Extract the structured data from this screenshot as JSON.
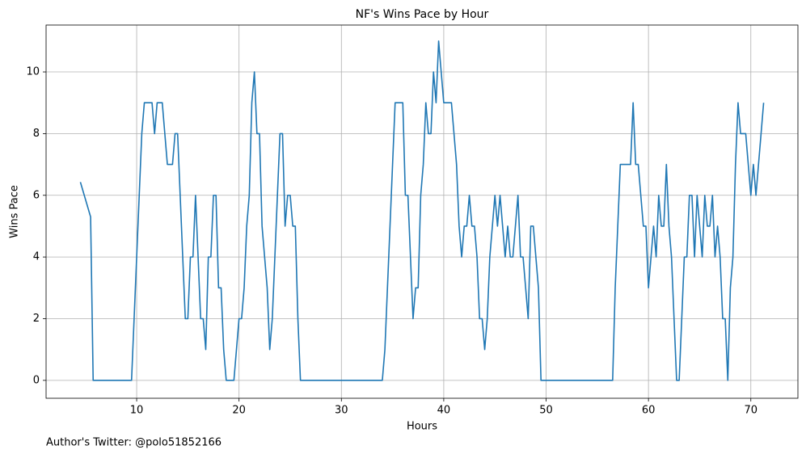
{
  "chart_data": {
    "type": "line",
    "title": "NF's Wins Pace by Hour",
    "xlabel": "Hours",
    "ylabel": "Wins Pace",
    "annotation": "Author's Twitter: @polo51852166",
    "x": [
      4.5,
      5.5,
      5.75,
      9.5,
      10.0,
      10.5,
      10.75,
      11.5,
      11.75,
      12.0,
      12.5,
      12.75,
      13.0,
      13.5,
      13.75,
      14.0,
      14.25,
      14.5,
      14.75,
      15.0,
      15.25,
      15.5,
      15.75,
      16.0,
      16.25,
      16.5,
      16.75,
      17.0,
      17.25,
      17.5,
      17.75,
      18.0,
      18.25,
      18.5,
      18.75,
      19.5,
      20.0,
      20.25,
      20.5,
      20.75,
      21.0,
      21.25,
      21.5,
      21.75,
      22.0,
      22.25,
      22.5,
      22.75,
      23.0,
      23.25,
      23.5,
      23.75,
      24.0,
      24.25,
      24.5,
      24.75,
      25.0,
      25.25,
      25.5,
      25.75,
      26.0,
      34.0,
      34.25,
      34.5,
      34.75,
      35.0,
      35.25,
      36.0,
      36.25,
      36.5,
      36.75,
      37.0,
      37.25,
      37.5,
      37.75,
      38.0,
      38.25,
      38.5,
      38.75,
      39.0,
      39.25,
      39.5,
      39.75,
      40.0,
      40.75,
      41.0,
      41.25,
      41.5,
      41.75,
      42.0,
      42.25,
      42.5,
      42.75,
      43.0,
      43.25,
      43.5,
      43.75,
      44.0,
      44.25,
      44.5,
      44.75,
      45.0,
      45.25,
      45.5,
      45.75,
      46.0,
      46.25,
      46.5,
      46.75,
      47.0,
      47.25,
      47.5,
      47.75,
      48.0,
      48.25,
      48.5,
      48.75,
      49.0,
      49.25,
      49.5,
      56.5,
      56.75,
      57.0,
      57.25,
      58.25,
      58.5,
      58.75,
      59.0,
      59.25,
      59.5,
      59.75,
      60.0,
      60.25,
      60.5,
      60.75,
      61.0,
      61.25,
      61.5,
      61.75,
      62.0,
      62.25,
      62.5,
      62.75,
      63.0,
      63.25,
      63.5,
      63.75,
      64.0,
      64.25,
      64.5,
      64.75,
      65.0,
      65.25,
      65.5,
      65.75,
      66.0,
      66.25,
      66.5,
      66.75,
      67.0,
      67.25,
      67.5,
      67.75,
      68.0,
      68.25,
      68.5,
      68.75,
      69.0,
      69.5,
      69.75,
      70.0,
      70.25,
      70.5,
      70.75,
      71.0,
      71.25
    ],
    "series": [
      {
        "name": "Wins Pace",
        "color": "#1f77b4",
        "values": [
          6.43,
          5.3,
          0,
          0,
          4,
          8,
          9,
          9,
          8,
          9,
          9,
          8,
          7,
          7,
          8,
          8,
          6,
          4,
          2,
          2,
          4,
          4,
          6,
          4,
          2,
          2,
          1,
          4,
          4,
          6,
          6,
          3,
          3,
          1,
          0,
          0,
          2,
          2,
          3,
          5,
          6,
          9,
          10,
          8,
          8,
          5,
          4,
          3,
          1,
          2,
          4,
          6,
          8,
          8,
          5,
          6,
          6,
          5,
          5,
          2,
          0,
          0,
          1,
          3,
          5,
          7,
          9,
          9,
          6,
          6,
          4,
          2,
          3,
          3,
          6,
          7,
          9,
          8,
          8,
          10,
          9,
          11,
          10,
          9,
          9,
          8,
          7,
          5,
          4,
          5,
          5,
          6,
          5,
          5,
          4,
          2,
          2,
          1,
          2,
          4,
          5,
          6,
          5,
          6,
          5,
          4,
          5,
          4,
          4,
          5,
          6,
          4,
          4,
          3,
          2,
          5,
          5,
          4,
          3,
          0,
          0,
          3,
          5,
          7,
          7,
          9,
          7,
          7,
          6,
          5,
          5,
          3,
          4,
          5,
          4,
          6,
          5,
          5,
          7,
          5,
          4,
          2,
          0,
          0,
          2,
          4,
          4,
          6,
          6,
          4,
          6,
          5,
          4,
          6,
          5,
          5,
          6,
          4,
          5,
          4,
          2,
          2,
          0,
          3,
          4,
          7,
          9,
          8,
          8,
          7,
          6,
          7,
          6,
          7,
          8,
          9
        ]
      }
    ],
    "xlim": [
      1.15,
      74.6
    ],
    "ylim": [
      -0.58,
      11.52
    ],
    "xticks": [
      10,
      20,
      30,
      40,
      50,
      60,
      70
    ],
    "yticks": [
      0,
      2,
      4,
      6,
      8,
      10
    ],
    "grid": true
  }
}
